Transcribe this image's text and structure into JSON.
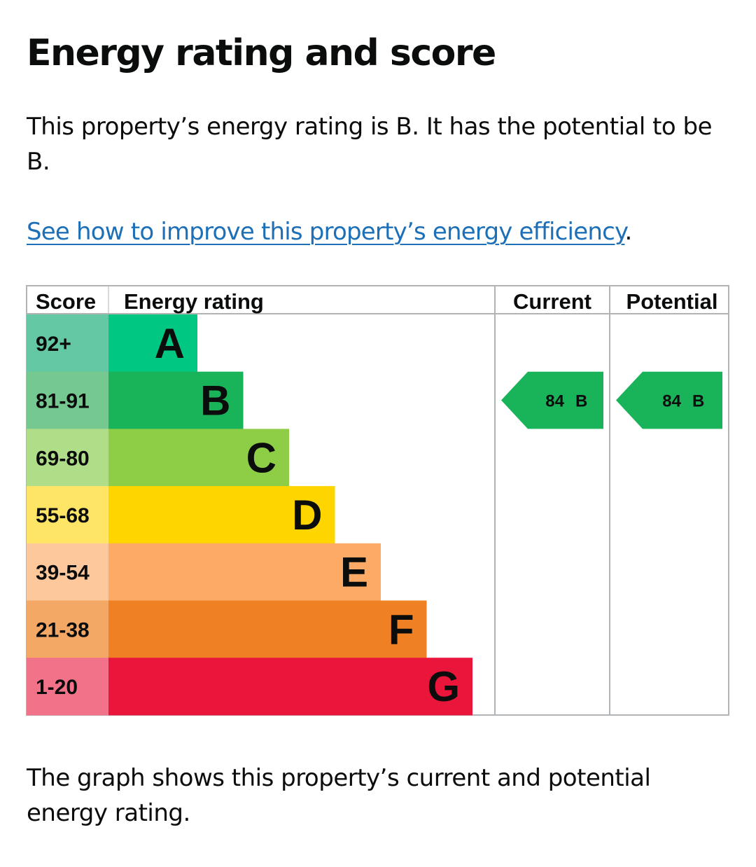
{
  "heading": "Energy rating and score",
  "intro": "This property’s energy rating is B. It has the potential to be B.",
  "improve_link": {
    "text": "See how to improve this property’s energy efficiency",
    "suffix": "."
  },
  "table": {
    "headers": {
      "score": "Score",
      "rating": "Energy rating",
      "current": "Current",
      "potential": "Potential"
    },
    "bands": [
      {
        "score": "92+",
        "letter": "A",
        "color": "#00c781",
        "score_bg": "#64c8a4"
      },
      {
        "score": "81-91",
        "letter": "B",
        "color": "#19b459",
        "score_bg": "#75c890"
      },
      {
        "score": "69-80",
        "letter": "C",
        "color": "#8dce46",
        "score_bg": "#b0dd88"
      },
      {
        "score": "55-68",
        "letter": "D",
        "color": "#ffd500",
        "score_bg": "#ffe566"
      },
      {
        "score": "39-54",
        "letter": "E",
        "color": "#fcaa65",
        "score_bg": "#fdc99c"
      },
      {
        "score": "21-38",
        "letter": "F",
        "color": "#ef8023",
        "score_bg": "#f4a866"
      },
      {
        "score": "1-20",
        "letter": "G",
        "color": "#e9153b",
        "score_bg": "#f27289"
      }
    ],
    "current": {
      "score": "84",
      "letter": "B",
      "band_index": 1,
      "color": "#19b459"
    },
    "potential": {
      "score": "84",
      "letter": "B",
      "band_index": 1,
      "color": "#19b459"
    }
  },
  "caption": "The graph shows this property’s current and potential energy rating."
}
